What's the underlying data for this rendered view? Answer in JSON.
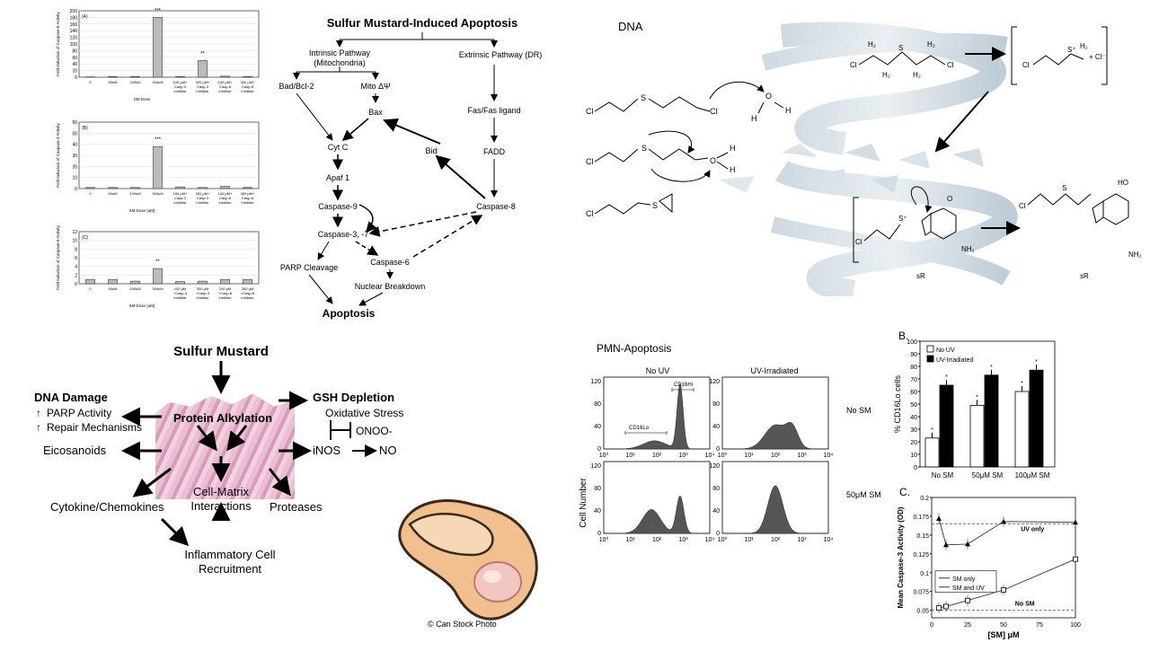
{
  "caspase_charts": [
    {
      "panel": "(A)",
      "ylabel": "Fold Induction of Caspase-8 Activity",
      "xlabel": "SM Dose",
      "ylim": [
        0,
        200
      ],
      "yticks": [
        "0",
        "20",
        "40",
        "60",
        "80",
        "100",
        "120",
        "140",
        "160",
        "180",
        "200"
      ],
      "categories": [
        "0",
        "50uM",
        "100uM",
        "300uM",
        "100 µM+\nCasp-3\nInhibitor",
        "300 µM+\nCasp-3\nInhibitor",
        "100 µM+\nCasp-8\nInhibitor",
        "300 µM+\nCasp-8\nInhibitor"
      ],
      "values": [
        1,
        2,
        2,
        180,
        2,
        50,
        3,
        2
      ],
      "stars": [
        "",
        "",
        "",
        "***",
        "",
        "**",
        "",
        ""
      ]
    },
    {
      "panel": "(B)",
      "ylabel": "Fold Induction of Caspase-3 Activity",
      "xlabel": "SM Dose (uM)",
      "ylim": [
        0,
        60
      ],
      "yticks": [
        "0",
        "10",
        "20",
        "30",
        "40",
        "50",
        "60"
      ],
      "categories": [
        "0",
        "50uM",
        "100uM",
        "300uM",
        "100 µM+\nCasp-3\nInhibitor",
        "300 µM+\nCasp-3\nInhibitor",
        "100 µM+\nCasp-8\nInhibitor",
        "300 µM+\nCasp-8\nInhibitor"
      ],
      "values": [
        1,
        1,
        1,
        38,
        1.5,
        1,
        2,
        1
      ],
      "stars": [
        "",
        "",
        "",
        "***",
        "",
        "",
        "",
        ""
      ]
    },
    {
      "panel": "(C)",
      "ylabel": "Fold Induction of Caspase-9 Activity",
      "xlabel": "SM Dose (uM)",
      "ylim": [
        0,
        12
      ],
      "yticks": [
        "0",
        "2",
        "4",
        "6",
        "8",
        "10",
        "12"
      ],
      "categories": [
        "0",
        "50uM",
        "100uM",
        "300uM",
        "100 µM\n+Casp-3\nInhibitor",
        "300 µM\n+Casp-3\nInhibitor",
        "100 µM\n+Casp-8\nInhibitor",
        "300 µM\n+Casp-8\nInhibitor"
      ],
      "values": [
        1,
        1,
        0.6,
        3.5,
        0.5,
        0.6,
        1,
        1
      ],
      "stars": [
        "",
        "",
        "",
        "**",
        "",
        "",
        "",
        ""
      ]
    }
  ],
  "pathway": {
    "title": "Sulfur Mustard-Induced Apoptosis",
    "intrinsic": "Intrinsic Pathway\n(Mitochondria)",
    "extrinsic": "Extrinsic Pathway (DR)",
    "bad": "Bad/Bcl-2",
    "mito": "Mito ΔΨ",
    "bax": "Bax",
    "fas": "Fas/Fas ligand",
    "cytc": "Cyt C",
    "apaf": "Apaf 1",
    "bid": "Bid",
    "fadd": "FADD",
    "casp9": "Caspase-9",
    "casp8": "Caspase-8",
    "casp37": "Caspase-3, -7",
    "parp": "PARP Cleavage",
    "casp6": "Caspase-6",
    "nuclear": "Nuclear Breakdown",
    "apoptosis": "Apoptosis"
  },
  "dna": {
    "label": "DNA"
  },
  "effects": {
    "sulfur": "Sulfur Mustard",
    "dna_damage": "DNA Damage",
    "parp": "PARP Activity",
    "repair": "Repair Mechanisms",
    "eicos": "Eicosanoids",
    "protein": "Protein Alkylation",
    "gsh": "GSH Depletion",
    "ox": "Oxidative Stress",
    "onoo": "ONOO-",
    "inos": "iNOS",
    "no": "NO",
    "cytokine": "Cytokine/Chemokines",
    "matrix": "Cell-Matrix\nInteractions",
    "proteases": "Proteases",
    "inflam": "Inflammatory Cell\nRecruitment"
  },
  "credit": "© Can Stock Photo",
  "flow": {
    "title": "PMN-Apoptosis",
    "col1": "No UV",
    "col2": "UV-Irradiated",
    "row1": "No SM",
    "row2": "50μM SM",
    "ylabel": "Cell Number",
    "yticks_top": [
      "0",
      "40",
      "80",
      "120"
    ],
    "yticks_bottom": [
      "0",
      "40",
      "80",
      "120"
    ],
    "xticks": [
      "10⁰",
      "10¹",
      "10²",
      "10³",
      "10⁴"
    ],
    "hi_label": "CD16Hi",
    "lo_label": "CD16Lo"
  },
  "chart_data": [
    {
      "type": "bar",
      "panel": "B.",
      "ylabel": "% CD16Lo cells",
      "ylim": [
        0,
        100
      ],
      "yticks": [
        "0",
        "10",
        "20",
        "30",
        "40",
        "50",
        "60",
        "70",
        "80",
        "90",
        "100"
      ],
      "categories": [
        "No SM",
        "50μM SM",
        "100μM SM"
      ],
      "series": [
        {
          "name": "No UV",
          "values": [
            23,
            49,
            60
          ],
          "color": "#ffffff"
        },
        {
          "name": "UV-Irradiated",
          "values": [
            65,
            73,
            77
          ],
          "color": "#000000"
        }
      ]
    },
    {
      "type": "line",
      "panel": "C.",
      "ylabel": "Mean Caspase-3 Activity (OD)",
      "xlabel": "[SM] μM",
      "ylim": [
        0.04,
        0.2
      ],
      "yticks": [
        "0.05",
        "0.075",
        "0.1",
        "0.125",
        "0.15",
        "0.175",
        "0.2"
      ],
      "xticks": [
        "0",
        "25",
        "50",
        "75",
        "100"
      ],
      "x": [
        5,
        10,
        25,
        50,
        100
      ],
      "series": [
        {
          "name": "SM only",
          "values": [
            0.053,
            0.055,
            0.063,
            0.077,
            0.118
          ]
        },
        {
          "name": "SM and UV",
          "values": [
            0.172,
            0.137,
            0.138,
            0.168,
            0.167
          ]
        }
      ],
      "annotations": [
        "UV only",
        "No SM"
      ]
    }
  ]
}
